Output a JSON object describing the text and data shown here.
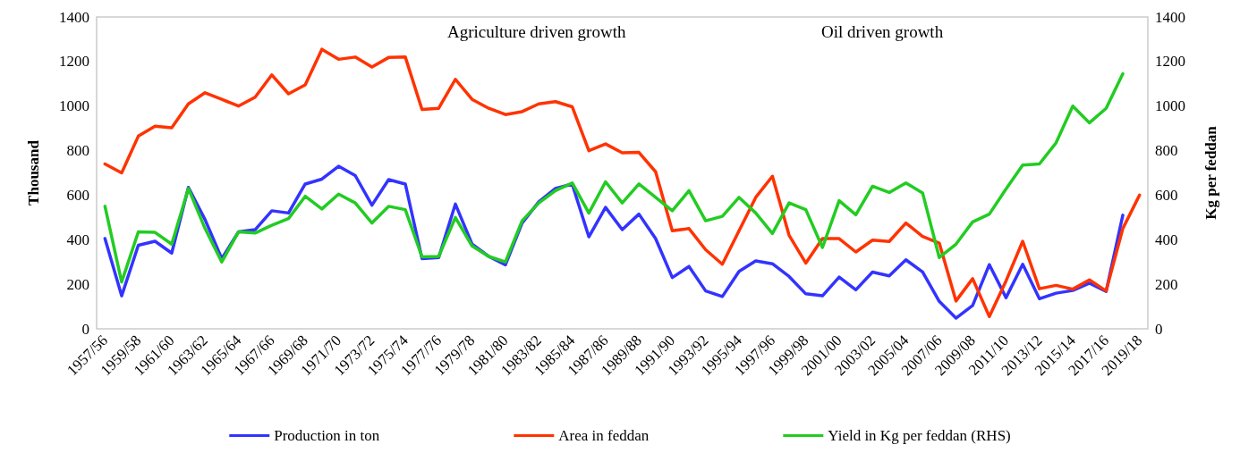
{
  "chart_data": {
    "type": "line",
    "ylabel": "Thousand",
    "y2label": "Kg per feddan",
    "annotations": [
      "Agriculture driven growth",
      "Oil driven growth"
    ],
    "categories": [
      "1957/56",
      null,
      "1959/58",
      null,
      "1961/60",
      null,
      "1963/62",
      null,
      "1965/64",
      null,
      "1967/66",
      null,
      "1969/68",
      null,
      "1971/70",
      null,
      "1973/72",
      null,
      "1975/74",
      null,
      "1977/76",
      null,
      "1979/78",
      null,
      "1981/80",
      null,
      "1983/82",
      null,
      "1985/84",
      null,
      "1987/86",
      null,
      "1989/88",
      null,
      "1991/90",
      null,
      "1993/92",
      null,
      "1995/94",
      null,
      "1997/96",
      null,
      "1999/98",
      null,
      "2001/00",
      null,
      "2003/02",
      null,
      "2005/04",
      null,
      "2007/06",
      null,
      "2009/08",
      null,
      "2011/10",
      null,
      "2013/12",
      null,
      "2015/14",
      null,
      "2017/16",
      null,
      "2019/18"
    ],
    "series": [
      {
        "name": "Production in ton",
        "color": "#3333ff",
        "values": [
          405,
          148,
          375,
          393,
          340,
          635,
          490,
          315,
          435,
          445,
          530,
          520,
          650,
          672,
          730,
          688,
          555,
          670,
          650,
          315,
          320,
          560,
          380,
          325,
          287,
          475,
          570,
          630,
          650,
          413,
          545,
          445,
          515,
          405,
          230,
          280,
          170,
          145,
          258,
          305,
          292,
          235,
          157,
          148,
          232,
          175,
          255,
          238,
          310,
          255,
          123,
          48,
          105,
          288,
          140,
          290,
          135,
          160,
          172,
          205,
          168,
          510,
          null
        ]
      },
      {
        "name": "Area in feddan",
        "color": "#ff3300",
        "values": [
          740,
          700,
          865,
          910,
          903,
          1010,
          1060,
          1030,
          1000,
          1040,
          1140,
          1055,
          1095,
          1255,
          1210,
          1220,
          1175,
          1218,
          1220,
          985,
          990,
          1120,
          1030,
          990,
          962,
          975,
          1010,
          1020,
          997,
          800,
          830,
          790,
          792,
          705,
          440,
          450,
          355,
          290,
          440,
          590,
          685,
          420,
          295,
          405,
          405,
          345,
          398,
          392,
          475,
          415,
          385,
          125,
          225,
          55,
          215,
          393,
          180,
          195,
          178,
          220,
          170,
          450,
          600
        ]
      },
      {
        "name": "Yield in Kg per feddan (RHS)",
        "color": "#22cc22",
        "axis": "y2",
        "values": [
          550,
          210,
          435,
          433,
          380,
          630,
          450,
          300,
          435,
          430,
          465,
          495,
          595,
          538,
          605,
          565,
          475,
          550,
          535,
          323,
          325,
          500,
          372,
          325,
          300,
          485,
          565,
          620,
          655,
          520,
          660,
          565,
          650,
          590,
          530,
          620,
          485,
          505,
          590,
          520,
          428,
          565,
          535,
          365,
          575,
          512,
          640,
          612,
          655,
          610,
          320,
          380,
          480,
          515,
          628,
          735,
          740,
          835,
          1000,
          925,
          990,
          1145,
          null
        ]
      }
    ],
    "ylim": [
      0,
      1400
    ],
    "yticks": [
      0,
      200,
      400,
      600,
      800,
      1000,
      1200,
      1400
    ],
    "y2lim": [
      0,
      1400
    ],
    "y2ticks": [
      0,
      200,
      400,
      600,
      800,
      1000,
      1200,
      1400
    ],
    "grid": false,
    "legend": "bottom",
    "marker": "none",
    "line_style": "solid"
  }
}
